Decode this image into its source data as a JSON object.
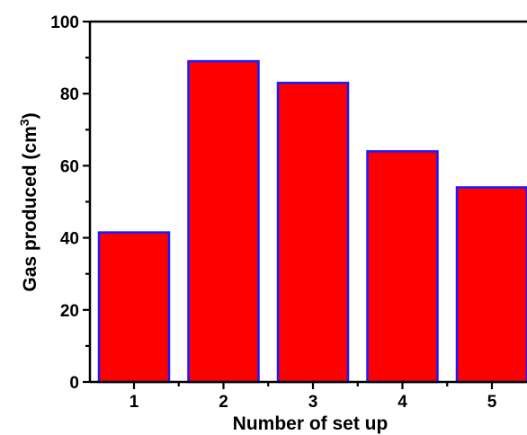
{
  "chart_data": {
    "type": "bar",
    "categories": [
      "1",
      "2",
      "3",
      "4",
      "5"
    ],
    "values": [
      41.5,
      89,
      83,
      64,
      54
    ],
    "xlabel": "Number of set up",
    "ylabel": {
      "before": "Gas produced (cm",
      "superscript": "3",
      "after": ")"
    },
    "ylim": [
      0,
      100
    ],
    "yticks": [
      "0",
      "20",
      "40",
      "60",
      "80",
      "100"
    ],
    "grid": false,
    "legend": "none",
    "colors": {
      "bar_fill": "#ff0000",
      "bar_edge": "#1a1aff",
      "axis": "#000000"
    }
  }
}
